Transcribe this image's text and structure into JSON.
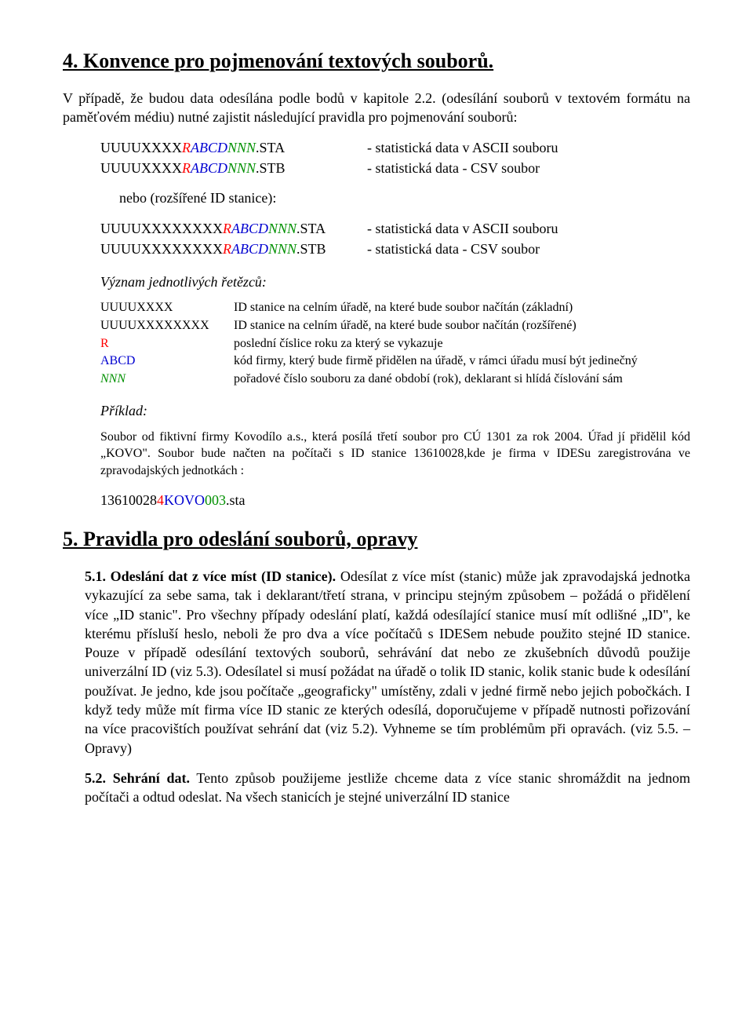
{
  "section4": {
    "title": "4. Konvence pro pojmenování textových souborů.",
    "intro": "V případě, že budou data odesílána podle bodů v kapitole 2.2. (odesílání souborů v textovém formátu na paměťovém médiu) nutné zajistit následující pravidla pro pojmenování souborů:",
    "files1": [
      {
        "name": {
          "p1": "UUUUXXXX",
          "r": "R",
          "abcd": "ABCD",
          "nnn": "NNN",
          "ext": ".STA"
        },
        "desc": "- statistická data v ASCII souboru"
      },
      {
        "name": {
          "p1": "UUUUXXXX",
          "r": "R",
          "abcd": "ABCD",
          "nnn": "NNN",
          "ext": ".STB"
        },
        "desc": "- statistická data - CSV soubor"
      }
    ],
    "or_label": "nebo (rozšířené ID stanice):",
    "files2": [
      {
        "name": {
          "p1": "UUUUXXXXXXXX",
          "r": "R",
          "abcd": "ABCD",
          "nnn": "NNN",
          "ext": ".STA"
        },
        "desc": "- statistická data v ASCII souboru"
      },
      {
        "name": {
          "p1": "UUUUXXXXXXXX",
          "r": "R",
          "abcd": "ABCD",
          "nnn": "NNN",
          "ext": ".STB"
        },
        "desc": "- statistická data - CSV soubor"
      }
    ],
    "meaning_title": "Význam jednotlivých řetězců:",
    "defs": [
      {
        "k": "UUUUXXXX",
        "v": "ID stanice na celním úřadě, na které bude soubor načítán (základní)"
      },
      {
        "k": "UUUUXXXXXXXX",
        "v": "ID stanice na celním úřadě, na které bude soubor načítán (rozšířené)"
      },
      {
        "k": "R",
        "kclass": "red",
        "v": "poslední číslice roku za který se vykazuje"
      },
      {
        "k": "ABCD",
        "kclass": "blue",
        "v": "kód firmy, který bude firmě přidělen na úřadě, v rámci úřadu musí být jedinečný"
      },
      {
        "k": "NNN",
        "kclass": "green italic",
        "v": "pořadové číslo souboru za dané období (rok), deklarant si hlídá číslování sám"
      }
    ],
    "example_title": "Příklad:",
    "example_text": "Soubor od fiktivní firmy Kovodílo a.s., která posílá třetí soubor pro CÚ 1301 za rok 2004. Úřad jí přidělil kód „KOVO\". Soubor bude načten na počítači s ID stanice 13610028,kde je firma v IDESu zaregistrována ve zpravodajských jednotkách :",
    "example_code": {
      "p1": "13610028",
      "r": "4",
      "abcd": "KOVO",
      "nnn": "003",
      "ext": ".sta"
    }
  },
  "section5": {
    "title": "5. Pravidla pro odeslání souborů, opravy",
    "s51": {
      "bold": "5.1. Odeslání dat z více míst (ID stanice).",
      "text": " Odesílat z více míst (stanic) může jak zpravodajská jednotka vykazující za sebe sama, tak i deklarant/třetí strana, v principu stejným způsobem – požádá o přidělení více „ID stanic\". Pro všechny případy odeslání platí, každá odesílající stanice musí mít odlišné „ID\", ke kterému přísluší heslo, neboli že pro dva a více počítačů s IDESem nebude použito stejné ID stanice. Pouze v případě odesílání textových souborů, sehrávání dat nebo ze zkušebních důvodů použije univerzální ID (viz 5.3). Odesílatel si musí požádat na úřadě o tolik ID stanic, kolik stanic bude k odesílání používat. Je jedno, kde jsou počítače „geograficky\" umístěny, zdali v jedné firmě nebo jejich pobočkách. I když tedy může mít firma více ID stanic ze kterých odesílá, doporučujeme v případě nutnosti pořizování na více pracovištích používat sehrání dat (viz 5.2). Vyhneme se tím problémům při opravách. (viz 5.5. – Opravy)"
    },
    "s52": {
      "bold": "5.2. Sehrání dat.",
      "text": " Tento způsob použijeme jestliže chceme data z více stanic shromáždit na jednom počítači a odtud odeslat. Na všech stanicích je stejné univerzální ID stanice"
    }
  }
}
